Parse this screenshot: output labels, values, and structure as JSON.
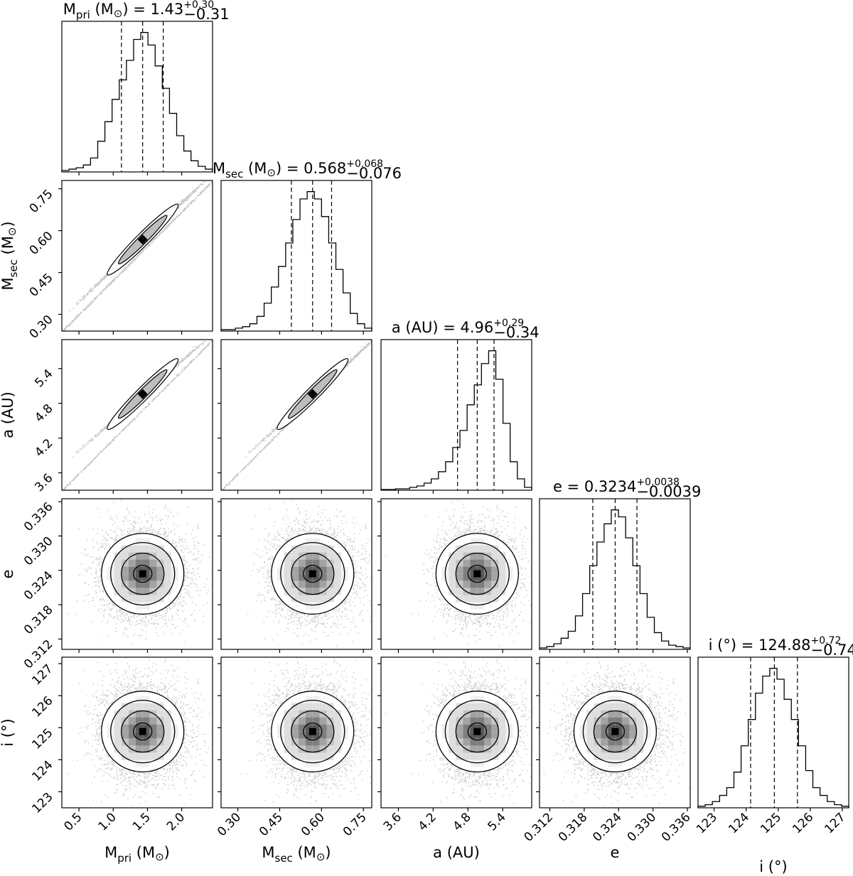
{
  "chart_data": {
    "type": "corner",
    "parameters": [
      {
        "key": "mpri",
        "label_main": "M",
        "label_sub": "pri",
        "label_unit": " (M",
        "label_sym": "⊙",
        "label_close": ")",
        "range": [
          0.25,
          2.45
        ],
        "ticks": [
          0.5,
          1.0,
          1.5,
          2.0
        ],
        "tick_labels": [
          "0.5",
          "1.0",
          "1.5",
          "2.0"
        ],
        "median": 1.43,
        "q_low": 1.12,
        "q_high": 1.73,
        "title_value": "1.43",
        "title_plus": "+0.30",
        "title_minus": "−0.31",
        "hist": [
          0.01,
          0.02,
          0.03,
          0.05,
          0.1,
          0.22,
          0.36,
          0.52,
          0.66,
          0.8,
          0.95,
          1.0,
          0.91,
          0.76,
          0.6,
          0.42,
          0.26,
          0.15,
          0.08,
          0.04,
          0.02
        ]
      },
      {
        "key": "msec",
        "label_main": "M",
        "label_sub": "sec",
        "label_unit": " (M",
        "label_sym": "⊙",
        "label_close": ")",
        "range": [
          0.24,
          0.78
        ],
        "ticks": [
          0.3,
          0.45,
          0.6,
          0.75
        ],
        "tick_labels": [
          "0.30",
          "0.45",
          "0.60",
          "0.75"
        ],
        "median": 0.568,
        "q_low": 0.492,
        "q_high": 0.636,
        "title_value": "0.568",
        "title_plus": "+0.068",
        "title_minus": "−0.076",
        "hist": [
          0.01,
          0.01,
          0.02,
          0.03,
          0.05,
          0.1,
          0.19,
          0.3,
          0.44,
          0.6,
          0.76,
          0.9,
          0.95,
          0.9,
          0.78,
          0.6,
          0.42,
          0.26,
          0.12,
          0.05,
          0.02
        ]
      },
      {
        "key": "a",
        "label_main": "a (AU)",
        "label_sub": "",
        "label_unit": "",
        "label_sym": "",
        "label_close": "",
        "range": [
          3.3,
          5.9
        ],
        "ticks": [
          3.6,
          4.2,
          4.8,
          5.4
        ],
        "tick_labels": [
          "3.6",
          "4.2",
          "4.8",
          "5.4"
        ],
        "median": 4.96,
        "q_low": 4.62,
        "q_high": 5.25,
        "title_value": "4.96",
        "title_plus": "+0.29",
        "title_minus": "−0.34",
        "hist": [
          0.005,
          0.005,
          0.01,
          0.01,
          0.02,
          0.03,
          0.05,
          0.08,
          0.13,
          0.2,
          0.3,
          0.42,
          0.6,
          0.74,
          0.89,
          0.98,
          0.78,
          0.47,
          0.2,
          0.08,
          0.02
        ]
      },
      {
        "key": "e",
        "label_main": "e",
        "label_sub": "",
        "label_unit": "",
        "label_sym": "",
        "label_close": "",
        "range": [
          0.3102,
          0.3365
        ],
        "ticks": [
          0.312,
          0.318,
          0.324,
          0.33,
          0.336
        ],
        "tick_labels": [
          "0.312",
          "0.318",
          "0.324",
          "0.330",
          "0.336"
        ],
        "median": 0.3234,
        "q_low": 0.3195,
        "q_high": 0.3272,
        "title_value": "0.3234",
        "title_plus": "+0.0038",
        "title_minus": "−0.0039",
        "hist": [
          0.01,
          0.02,
          0.04,
          0.08,
          0.13,
          0.24,
          0.4,
          0.6,
          0.77,
          0.9,
          1.0,
          0.95,
          0.8,
          0.6,
          0.4,
          0.23,
          0.12,
          0.06,
          0.03,
          0.02,
          0.01
        ]
      },
      {
        "key": "i",
        "label_main": "i (°)",
        "label_sub": "",
        "label_unit": "",
        "label_sym": "",
        "label_close": "",
        "range": [
          122.5,
          127.2
        ],
        "ticks": [
          123,
          124,
          125,
          126,
          127
        ],
        "tick_labels": [
          "123",
          "124",
          "125",
          "126",
          "127"
        ],
        "median": 124.88,
        "q_low": 124.14,
        "q_high": 125.6,
        "title_value": "124.88",
        "title_plus": "+0.72",
        "title_minus": "−0.74",
        "hist": [
          0.01,
          0.02,
          0.04,
          0.08,
          0.13,
          0.23,
          0.4,
          0.57,
          0.74,
          0.85,
          0.9,
          0.83,
          0.7,
          0.57,
          0.4,
          0.24,
          0.13,
          0.08,
          0.04,
          0.02,
          0.01
        ]
      }
    ],
    "correlated_pairs": [
      [
        "msec",
        "mpri"
      ],
      [
        "a",
        "mpri"
      ],
      [
        "a",
        "msec"
      ]
    ],
    "title_format": "{label} = {value}",
    "colors": {
      "ink": "#000000",
      "background": "#ffffff"
    }
  }
}
